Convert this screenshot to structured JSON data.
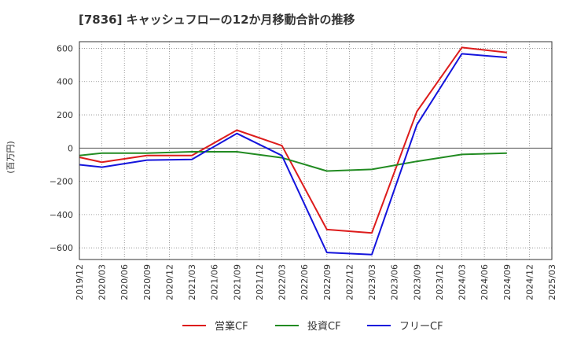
{
  "chart_data": {
    "type": "line",
    "title": "[7836]  キャッシュフローの12か月移動合計の推移",
    "ylabel": "(百万円)",
    "xlabel": "",
    "ylim": [
      -670,
      640
    ],
    "yticks": [
      600,
      400,
      200,
      0,
      -200,
      -400,
      -600
    ],
    "ytick_labels": [
      "600",
      "400",
      "200",
      "0",
      "−200",
      "−400",
      "−600"
    ],
    "categories": [
      "2019/12",
      "2020/03",
      "2020/06",
      "2020/09",
      "2020/12",
      "2021/03",
      "2021/06",
      "2021/09",
      "2021/12",
      "2022/03",
      "2022/06",
      "2022/09",
      "2022/12",
      "2023/03",
      "2023/06",
      "2023/09",
      "2023/12",
      "2024/03",
      "2024/06",
      "2024/09",
      "2024/12",
      "2025/03"
    ],
    "grid": true,
    "legend_position": "bottom",
    "series": [
      {
        "name": "営業CF",
        "color": "#dd1c1c",
        "points": [
          [
            0,
            -55
          ],
          [
            1,
            -85
          ],
          [
            3,
            -45
          ],
          [
            5,
            -45
          ],
          [
            7,
            108
          ],
          [
            9,
            15
          ],
          [
            11,
            -490
          ],
          [
            13,
            -510
          ],
          [
            15,
            220
          ],
          [
            17,
            605
          ],
          [
            19,
            575
          ]
        ]
      },
      {
        "name": "投資CF",
        "color": "#228b22",
        "points": [
          [
            0,
            -45
          ],
          [
            1,
            -30
          ],
          [
            3,
            -30
          ],
          [
            5,
            -22
          ],
          [
            7,
            -22
          ],
          [
            9,
            -58
          ],
          [
            11,
            -138
          ],
          [
            13,
            -128
          ],
          [
            15,
            -80
          ],
          [
            17,
            -38
          ],
          [
            19,
            -30
          ]
        ]
      },
      {
        "name": "フリーCF",
        "color": "#1414dc",
        "points": [
          [
            0,
            -100
          ],
          [
            1,
            -115
          ],
          [
            3,
            -72
          ],
          [
            5,
            -68
          ],
          [
            7,
            88
          ],
          [
            9,
            -45
          ],
          [
            11,
            -628
          ],
          [
            13,
            -640
          ],
          [
            15,
            140
          ],
          [
            17,
            567
          ],
          [
            19,
            545
          ]
        ]
      }
    ]
  }
}
